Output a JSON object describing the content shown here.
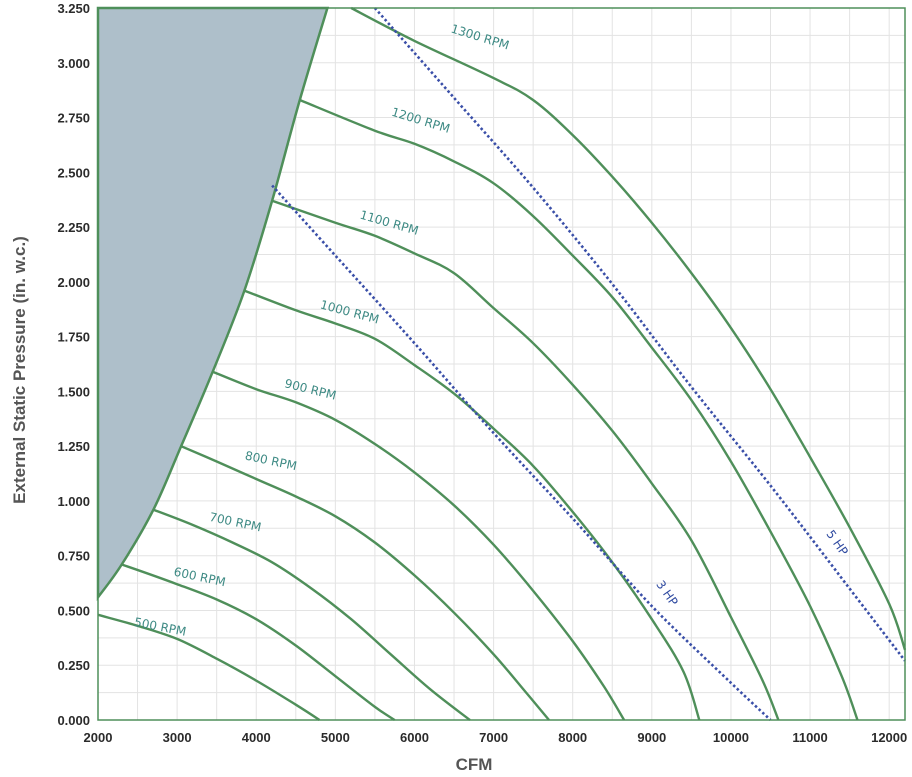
{
  "chart_data": {
    "type": "line",
    "title": "",
    "xlabel": "CFM",
    "ylabel": "External Static Pressure (in. w.c.)",
    "xlim": [
      2000,
      12200
    ],
    "ylim": [
      0,
      3.25
    ],
    "x_ticks": [
      2000,
      3000,
      4000,
      5000,
      6000,
      7000,
      8000,
      9000,
      10000,
      11000,
      12000
    ],
    "y_ticks": [
      0.0,
      0.25,
      0.5,
      0.75,
      1.0,
      1.25,
      1.5,
      1.75,
      2.0,
      2.25,
      2.5,
      2.75,
      3.0,
      3.25
    ],
    "x_tick_labels": [
      "2000",
      "3000",
      "4000",
      "5000",
      "6000",
      "7000",
      "8000",
      "9000",
      "10000",
      "11000",
      "12000"
    ],
    "y_tick_labels": [
      "0.000",
      "0.250",
      "0.500",
      "0.750",
      "1.000",
      "1.250",
      "1.500",
      "1.750",
      "2.000",
      "2.250",
      "2.500",
      "2.750",
      "3.000",
      "3.250"
    ],
    "grid": true,
    "colors": {
      "rpm_curve": "#4f8f5a",
      "hp_curve": "#3a4fa8",
      "shaded_region": "#aebfca",
      "grid": "#e3e3e3"
    },
    "shaded_region_boundary": [
      {
        "x": 2000,
        "y": 0.56
      },
      {
        "x": 2300,
        "y": 0.71
      },
      {
        "x": 2700,
        "y": 0.96
      },
      {
        "x": 3050,
        "y": 1.25
      },
      {
        "x": 3450,
        "y": 1.59
      },
      {
        "x": 3850,
        "y": 1.96
      },
      {
        "x": 4200,
        "y": 2.37
      },
      {
        "x": 4550,
        "y": 2.83
      },
      {
        "x": 4900,
        "y": 3.25
      }
    ],
    "series": [
      {
        "name": "500 RPM",
        "label": "500 RPM",
        "style": "solid",
        "points": [
          [
            2000,
            0.48
          ],
          [
            2500,
            0.43
          ],
          [
            3000,
            0.37
          ],
          [
            3500,
            0.28
          ],
          [
            4000,
            0.18
          ],
          [
            4500,
            0.07
          ],
          [
            4800,
            0.0
          ]
        ]
      },
      {
        "name": "600 RPM",
        "label": "600 RPM",
        "style": "solid",
        "points": [
          [
            2300,
            0.71
          ],
          [
            3000,
            0.62
          ],
          [
            3500,
            0.55
          ],
          [
            4000,
            0.46
          ],
          [
            4500,
            0.34
          ],
          [
            5000,
            0.2
          ],
          [
            5500,
            0.06
          ],
          [
            5750,
            0.0
          ]
        ]
      },
      {
        "name": "700 RPM",
        "label": "700 RPM",
        "style": "solid",
        "points": [
          [
            2700,
            0.96
          ],
          [
            3200,
            0.89
          ],
          [
            3700,
            0.81
          ],
          [
            4200,
            0.72
          ],
          [
            4700,
            0.6
          ],
          [
            5200,
            0.46
          ],
          [
            5700,
            0.3
          ],
          [
            6200,
            0.14
          ],
          [
            6700,
            0.0
          ]
        ]
      },
      {
        "name": "800 RPM",
        "label": "800 RPM",
        "style": "solid",
        "points": [
          [
            3050,
            1.25
          ],
          [
            3500,
            1.18
          ],
          [
            4000,
            1.1
          ],
          [
            4500,
            1.02
          ],
          [
            5000,
            0.93
          ],
          [
            5500,
            0.81
          ],
          [
            6000,
            0.66
          ],
          [
            6500,
            0.49
          ],
          [
            7000,
            0.3
          ],
          [
            7400,
            0.13
          ],
          [
            7700,
            0.0
          ]
        ]
      },
      {
        "name": "900 RPM",
        "label": "900 RPM",
        "style": "solid",
        "points": [
          [
            3450,
            1.59
          ],
          [
            4000,
            1.51
          ],
          [
            4500,
            1.45
          ],
          [
            5000,
            1.37
          ],
          [
            5500,
            1.26
          ],
          [
            6000,
            1.13
          ],
          [
            6500,
            0.98
          ],
          [
            7000,
            0.8
          ],
          [
            7500,
            0.59
          ],
          [
            8000,
            0.36
          ],
          [
            8400,
            0.15
          ],
          [
            8650,
            0.0
          ]
        ]
      },
      {
        "name": "1000 RPM",
        "label": "1000 RPM",
        "style": "solid",
        "points": [
          [
            3850,
            1.96
          ],
          [
            4500,
            1.87
          ],
          [
            5000,
            1.81
          ],
          [
            5500,
            1.74
          ],
          [
            6000,
            1.62
          ],
          [
            6500,
            1.49
          ],
          [
            7000,
            1.33
          ],
          [
            7500,
            1.16
          ],
          [
            8000,
            0.95
          ],
          [
            8500,
            0.72
          ],
          [
            9000,
            0.46
          ],
          [
            9400,
            0.22
          ],
          [
            9600,
            0.0
          ]
        ]
      },
      {
        "name": "1100 RPM",
        "label": "1100 RPM",
        "style": "solid",
        "points": [
          [
            4200,
            2.37
          ],
          [
            5000,
            2.27
          ],
          [
            5500,
            2.21
          ],
          [
            6000,
            2.13
          ],
          [
            6500,
            2.04
          ],
          [
            7000,
            1.88
          ],
          [
            7500,
            1.72
          ],
          [
            8000,
            1.53
          ],
          [
            8500,
            1.32
          ],
          [
            9000,
            1.08
          ],
          [
            9500,
            0.82
          ],
          [
            10000,
            0.47
          ],
          [
            10400,
            0.18
          ],
          [
            10600,
            0.0
          ]
        ]
      },
      {
        "name": "1200 RPM",
        "label": "1200 RPM",
        "style": "solid",
        "points": [
          [
            4550,
            2.83
          ],
          [
            5500,
            2.69
          ],
          [
            6000,
            2.63
          ],
          [
            6500,
            2.55
          ],
          [
            7000,
            2.45
          ],
          [
            7500,
            2.3
          ],
          [
            8000,
            2.12
          ],
          [
            8500,
            1.93
          ],
          [
            9000,
            1.7
          ],
          [
            9500,
            1.46
          ],
          [
            10000,
            1.18
          ],
          [
            10500,
            0.86
          ],
          [
            11000,
            0.52
          ],
          [
            11400,
            0.2
          ],
          [
            11600,
            0.0
          ]
        ]
      },
      {
        "name": "1300 RPM",
        "label": "1300 RPM",
        "style": "solid",
        "points": [
          [
            5200,
            3.25
          ],
          [
            6000,
            3.1
          ],
          [
            7000,
            2.93
          ],
          [
            7500,
            2.83
          ],
          [
            8000,
            2.67
          ],
          [
            8500,
            2.48
          ],
          [
            9000,
            2.27
          ],
          [
            9500,
            2.04
          ],
          [
            10000,
            1.79
          ],
          [
            10500,
            1.51
          ],
          [
            11000,
            1.2
          ],
          [
            11500,
            0.88
          ],
          [
            12000,
            0.53
          ],
          [
            12200,
            0.32
          ]
        ]
      },
      {
        "name": "3 HP",
        "label": "3 HP",
        "style": "dotted",
        "points": [
          [
            4200,
            2.44
          ],
          [
            5000,
            2.12
          ],
          [
            6000,
            1.72
          ],
          [
            7000,
            1.31
          ],
          [
            8000,
            0.92
          ],
          [
            9000,
            0.52
          ],
          [
            10000,
            0.17
          ],
          [
            10500,
            0.0
          ]
        ]
      },
      {
        "name": "5 HP",
        "label": "5 HP",
        "style": "dotted",
        "points": [
          [
            5500,
            3.25
          ],
          [
            6500,
            2.84
          ],
          [
            7500,
            2.43
          ],
          [
            8500,
            1.99
          ],
          [
            9500,
            1.52
          ],
          [
            10500,
            1.07
          ],
          [
            11500,
            0.6
          ],
          [
            12200,
            0.27
          ]
        ]
      }
    ],
    "annotations": [
      {
        "text": "500 RPM",
        "x": 2450,
        "y": 0.43,
        "angle": 11,
        "kind": "rpm"
      },
      {
        "text": "600 RPM",
        "x": 2950,
        "y": 0.66,
        "angle": 12,
        "kind": "rpm"
      },
      {
        "text": "700 RPM",
        "x": 3400,
        "y": 0.91,
        "angle": 12,
        "kind": "rpm"
      },
      {
        "text": "800 RPM",
        "x": 3850,
        "y": 1.19,
        "angle": 12,
        "kind": "rpm"
      },
      {
        "text": "900 RPM",
        "x": 4350,
        "y": 1.52,
        "angle": 14,
        "kind": "rpm"
      },
      {
        "text": "1000 RPM",
        "x": 4800,
        "y": 1.88,
        "angle": 15,
        "kind": "rpm"
      },
      {
        "text": "1100 RPM",
        "x": 5300,
        "y": 2.29,
        "angle": 16,
        "kind": "rpm"
      },
      {
        "text": "1200 RPM",
        "x": 5700,
        "y": 2.76,
        "angle": 17,
        "kind": "rpm"
      },
      {
        "text": "1300 RPM",
        "x": 6450,
        "y": 3.14,
        "angle": 17,
        "kind": "rpm"
      },
      {
        "text": "3 HP",
        "x": 9050,
        "y": 0.62,
        "angle": 55,
        "kind": "hp"
      },
      {
        "text": "5 HP",
        "x": 11200,
        "y": 0.85,
        "angle": 55,
        "kind": "hp"
      }
    ]
  }
}
